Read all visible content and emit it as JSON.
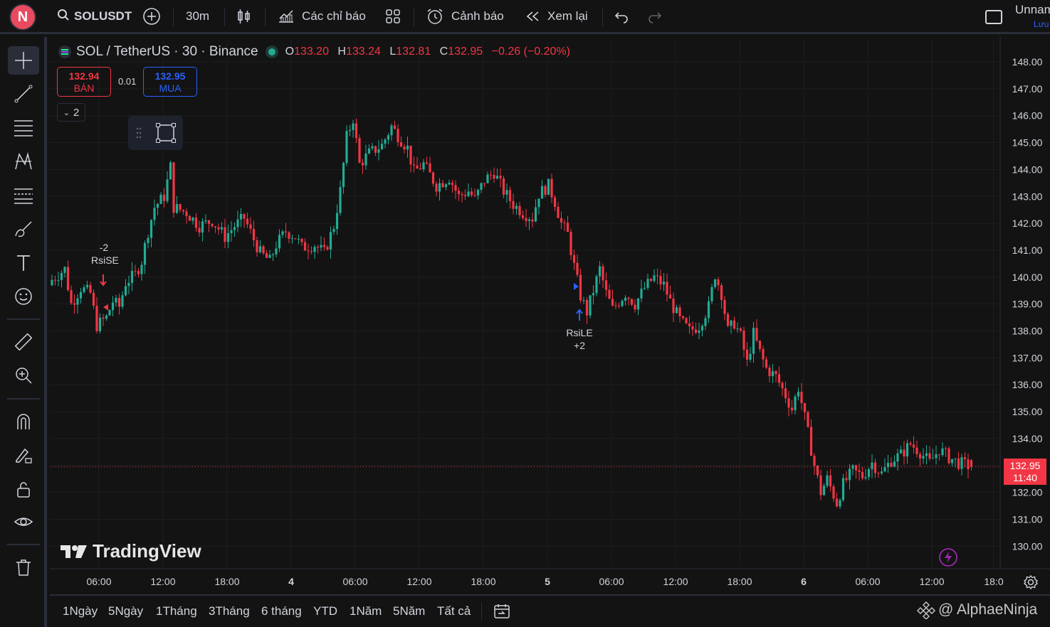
{
  "toolbar": {
    "avatar_letter": "N",
    "symbol": "SOLUSDT",
    "interval": "30m",
    "indicators": "Các chỉ báo",
    "alert": "Cảnh báo",
    "replay": "Xem lại",
    "layout_name": "Unnam",
    "save": "Lưu"
  },
  "legend": {
    "title": "SOL / TetherUS · 30 · Binance",
    "o_label": "O",
    "o": "133.20",
    "h_label": "H",
    "h": "133.24",
    "l_label": "L",
    "l": "132.81",
    "c_label": "C",
    "c": "132.95",
    "change": "−0.26 (−0.20%)"
  },
  "trade": {
    "sell_price": "132.94",
    "sell_label": "BÁN",
    "spread": "0.01",
    "buy_price": "132.95",
    "buy_label": "MUA",
    "collapsed_count": "2"
  },
  "last_price": {
    "price": "132.95",
    "countdown": "11:40"
  },
  "annotations": {
    "short_qty": "-2",
    "short_name": "RsiSE",
    "long_name": "RsiLE",
    "long_qty": "+2"
  },
  "brand": {
    "logo_text": "TradingView",
    "watermark": "@ AlphaeNinja"
  },
  "bottom": {
    "ranges": [
      "1Ngày",
      "5Ngày",
      "1Tháng",
      "3Tháng",
      "6 tháng",
      "YTD",
      "1Năm",
      "5Năm",
      "Tất cả"
    ]
  },
  "colors": {
    "up": "#22ab94",
    "down": "#f23645",
    "background": "#131313",
    "grid": "#1e1e1e",
    "buy": "#2962ff"
  },
  "chart_data": {
    "type": "candlestick",
    "title": "SOL / TetherUS · 30 · Binance",
    "xlabel": "",
    "ylabel": "",
    "ylim": [
      129.5,
      148.6
    ],
    "y_ticks": [
      "148.00",
      "147.00",
      "146.00",
      "145.00",
      "144.00",
      "143.00",
      "142.00",
      "141.00",
      "140.00",
      "139.00",
      "138.00",
      "137.00",
      "136.00",
      "135.00",
      "134.00",
      "133.00",
      "132.00",
      "131.00",
      "130.00"
    ],
    "x_ticks": [
      "06:00",
      "12:00",
      "18:00",
      "4",
      "06:00",
      "12:00",
      "18:00",
      "5",
      "06:00",
      "12:00",
      "18:00",
      "6",
      "06:00",
      "12:00",
      "18:0"
    ],
    "grid": true,
    "last_price": 132.95,
    "close_path": [
      [
        0,
        139.9
      ],
      [
        4,
        140.3
      ],
      [
        6,
        139.0
      ],
      [
        9,
        139.6
      ],
      [
        12,
        139.4
      ],
      [
        14,
        138.2
      ],
      [
        17,
        138.5
      ],
      [
        19,
        139.1
      ],
      [
        21,
        138.9
      ],
      [
        23,
        139.8
      ],
      [
        26,
        140.1
      ],
      [
        28,
        140.6
      ],
      [
        30,
        141.7
      ],
      [
        32,
        142.6
      ],
      [
        35,
        143.0
      ],
      [
        37,
        144.1
      ],
      [
        38,
        142.6
      ],
      [
        42,
        142.4
      ],
      [
        46,
        141.9
      ],
      [
        50,
        142.1
      ],
      [
        54,
        141.5
      ],
      [
        57,
        141.9
      ],
      [
        60,
        142.2
      ],
      [
        63,
        141.4
      ],
      [
        65,
        140.9
      ],
      [
        68,
        140.6
      ],
      [
        70,
        141.2
      ],
      [
        73,
        141.7
      ],
      [
        76,
        141.5
      ],
      [
        78,
        141.1
      ],
      [
        82,
        141.2
      ],
      [
        85,
        140.9
      ],
      [
        88,
        141.9
      ],
      [
        90,
        143.2
      ],
      [
        92,
        145.2
      ],
      [
        94,
        145.9
      ],
      [
        96,
        144.2
      ],
      [
        99,
        144.6
      ],
      [
        103,
        144.9
      ],
      [
        106,
        145.6
      ],
      [
        109,
        145.1
      ],
      [
        111,
        144.8
      ],
      [
        113,
        143.9
      ],
      [
        116,
        144.2
      ],
      [
        120,
        143.4
      ],
      [
        124,
        143.7
      ],
      [
        127,
        143.0
      ],
      [
        130,
        143.2
      ],
      [
        132,
        142.9
      ],
      [
        135,
        143.6
      ],
      [
        138,
        143.9
      ],
      [
        141,
        143.2
      ],
      [
        144,
        142.7
      ],
      [
        147,
        142.4
      ],
      [
        150,
        142.2
      ],
      [
        152,
        143.1
      ],
      [
        155,
        143.4
      ],
      [
        157,
        142.8
      ],
      [
        159,
        142.0
      ],
      [
        161,
        141.6
      ],
      [
        163,
        140.4
      ],
      [
        165,
        139.3
      ],
      [
        167,
        138.7
      ],
      [
        169,
        139.5
      ],
      [
        171,
        140.3
      ],
      [
        173,
        139.4
      ],
      [
        175,
        138.8
      ],
      [
        177,
        139.1
      ],
      [
        179,
        139.4
      ],
      [
        182,
        139.0
      ],
      [
        185,
        139.6
      ],
      [
        188,
        140.0
      ],
      [
        191,
        139.7
      ],
      [
        193,
        139.1
      ],
      [
        196,
        138.4
      ],
      [
        199,
        138.0
      ],
      [
        202,
        138.2
      ],
      [
        205,
        138.9
      ],
      [
        207,
        140.1
      ],
      [
        209,
        139.4
      ],
      [
        211,
        138.0
      ],
      [
        213,
        138.3
      ],
      [
        215,
        137.8
      ],
      [
        217,
        136.8
      ],
      [
        219,
        137.9
      ],
      [
        221,
        137.2
      ],
      [
        223,
        136.6
      ],
      [
        226,
        136.3
      ],
      [
        229,
        135.6
      ],
      [
        231,
        135.1
      ],
      [
        233,
        135.9
      ],
      [
        236,
        134.2
      ],
      [
        238,
        133.0
      ],
      [
        240,
        132.0
      ],
      [
        242,
        132.5
      ],
      [
        245,
        131.6
      ],
      [
        247,
        132.3
      ],
      [
        250,
        132.8
      ],
      [
        253,
        132.6
      ],
      [
        256,
        133.1
      ],
      [
        259,
        132.7
      ],
      [
        262,
        133.2
      ],
      [
        265,
        133.4
      ],
      [
        268,
        133.8
      ],
      [
        271,
        133.5
      ],
      [
        274,
        133.1
      ],
      [
        277,
        133.6
      ],
      [
        280,
        133.3
      ],
      [
        283,
        133.1
      ],
      [
        287,
        132.95
      ]
    ],
    "annotations": [
      {
        "label": "RsiSE",
        "qty": "-2",
        "side": "sell"
      },
      {
        "label": "RsiLE",
        "qty": "+2",
        "side": "buy"
      }
    ]
  }
}
